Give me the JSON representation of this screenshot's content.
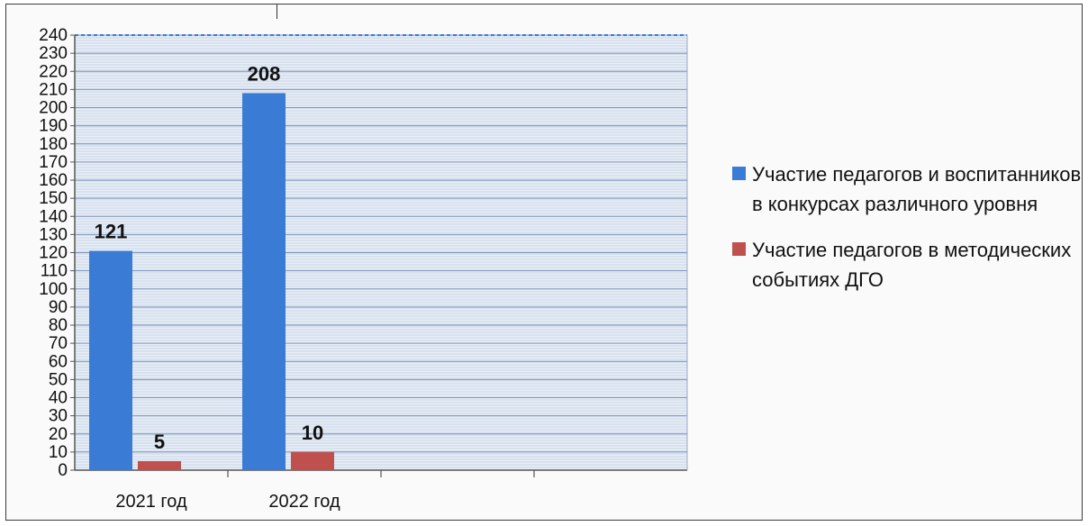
{
  "chart_data": {
    "type": "bar",
    "title": "",
    "xlabel": "",
    "ylabel": "",
    "categories": [
      "2021 год",
      "2022 год",
      "",
      ""
    ],
    "series": [
      {
        "name": "Участие педагогов и воспитанников в конкурсах различного уровня",
        "values": [
          121,
          208,
          null,
          null
        ],
        "color": "#3a7bd5"
      },
      {
        "name": "Участие педагогов в методических событиях ДГО",
        "values": [
          5,
          10,
          null,
          null
        ],
        "color": "#c0504d"
      }
    ],
    "ylim": [
      0,
      240
    ],
    "yticks": [
      0,
      10,
      20,
      30,
      40,
      50,
      60,
      70,
      80,
      90,
      100,
      110,
      120,
      130,
      140,
      150,
      160,
      170,
      180,
      190,
      200,
      210,
      220,
      230,
      240
    ],
    "grid": true,
    "legend_position": "right",
    "plot_background": "#e8eef7",
    "gridline_color": "#9fb3d0"
  }
}
